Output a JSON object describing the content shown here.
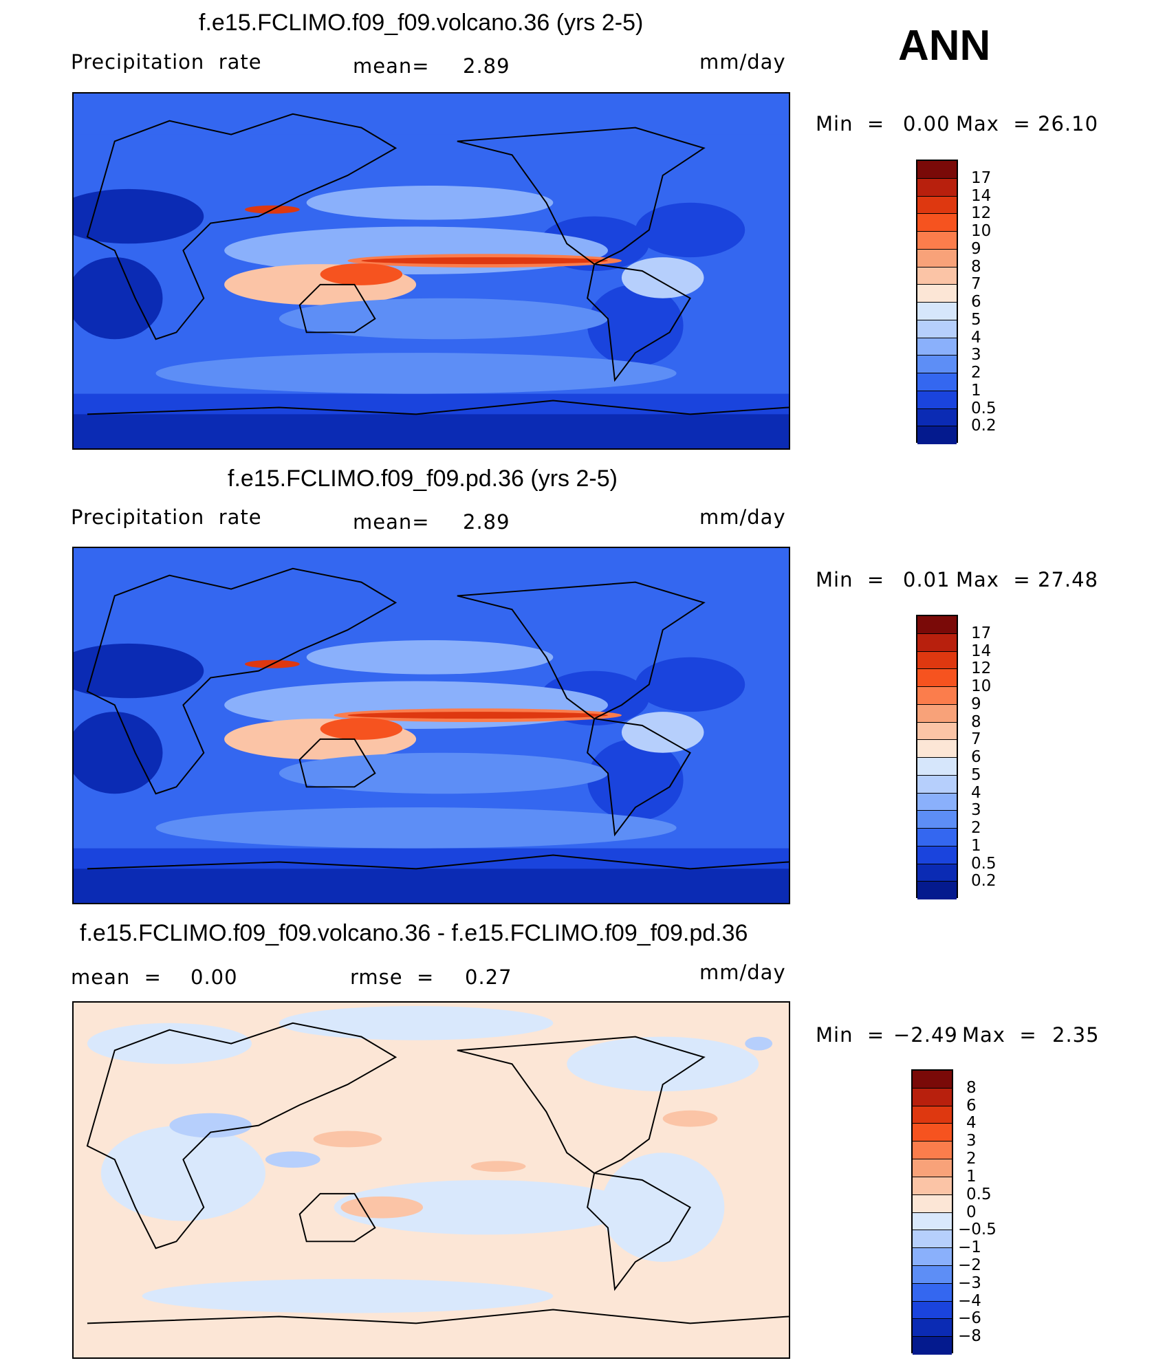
{
  "season": "ANN",
  "panels": [
    {
      "title": "f.e15.FCLIMO.f09_f09.volcano.36 (yrs 2-5)",
      "left_label": "Precipitation  rate",
      "mid_label": "mean=",
      "mid_value": "2.89",
      "units": "mm/day",
      "min_label": "Min  =",
      "min_value": "0.00",
      "max_label": "Max  =",
      "max_value": "26.10",
      "levels": [
        "17",
        "14",
        "12",
        "10",
        "9",
        "8",
        "7",
        "6",
        "5",
        "4",
        "3",
        "2",
        "1",
        "0.5",
        "0.2"
      ]
    },
    {
      "title": "f.e15.FCLIMO.f09_f09.pd.36 (yrs 2-5)",
      "left_label": "Precipitation  rate",
      "mid_label": "mean=",
      "mid_value": "2.89",
      "units": "mm/day",
      "min_label": "Min  =",
      "min_value": "0.01",
      "max_label": "Max  =",
      "max_value": "27.48",
      "levels": [
        "17",
        "14",
        "12",
        "10",
        "9",
        "8",
        "7",
        "6",
        "5",
        "4",
        "3",
        "2",
        "1",
        "0.5",
        "0.2"
      ]
    },
    {
      "title": "f.e15.FCLIMO.f09_f09.volcano.36 - f.e15.FCLIMO.f09_f09.pd.36",
      "left_label": "mean  =",
      "left_value": "0.00",
      "mid_label": "rmse  =",
      "mid_value": "0.27",
      "units": "mm/day",
      "min_label": "Min  =",
      "min_value": "−2.49",
      "max_label": "Max  =",
      "max_value": "2.35",
      "levels": [
        "8",
        "6",
        "4",
        "3",
        "2",
        "1",
        "0.5",
        "0",
        "−0.5",
        "−1",
        "−2",
        "−3",
        "−4",
        "−6",
        "−8"
      ]
    }
  ],
  "colors": {
    "precip_scale": [
      "#7a0a08",
      "#b8200d",
      "#de3810",
      "#f6531f",
      "#fb7d4c",
      "#f8a279",
      "#fbc4a6",
      "#fce6d6",
      "#d6e6fb",
      "#b6cffc",
      "#8ab0fb",
      "#5d8ef6",
      "#3467f0",
      "#1a44dd",
      "#0b2bb4",
      "#041a8e"
    ],
    "diff_scale": [
      "#7a0a08",
      "#b8200d",
      "#de3810",
      "#f6531f",
      "#fb7d4c",
      "#f8a279",
      "#fbc4a6",
      "#fce6d6",
      "#d9e8fc",
      "#b6cffc",
      "#8ab0fb",
      "#5d8ef6",
      "#3467f0",
      "#1a44dd",
      "#0b2bb4",
      "#041a8e"
    ]
  }
}
